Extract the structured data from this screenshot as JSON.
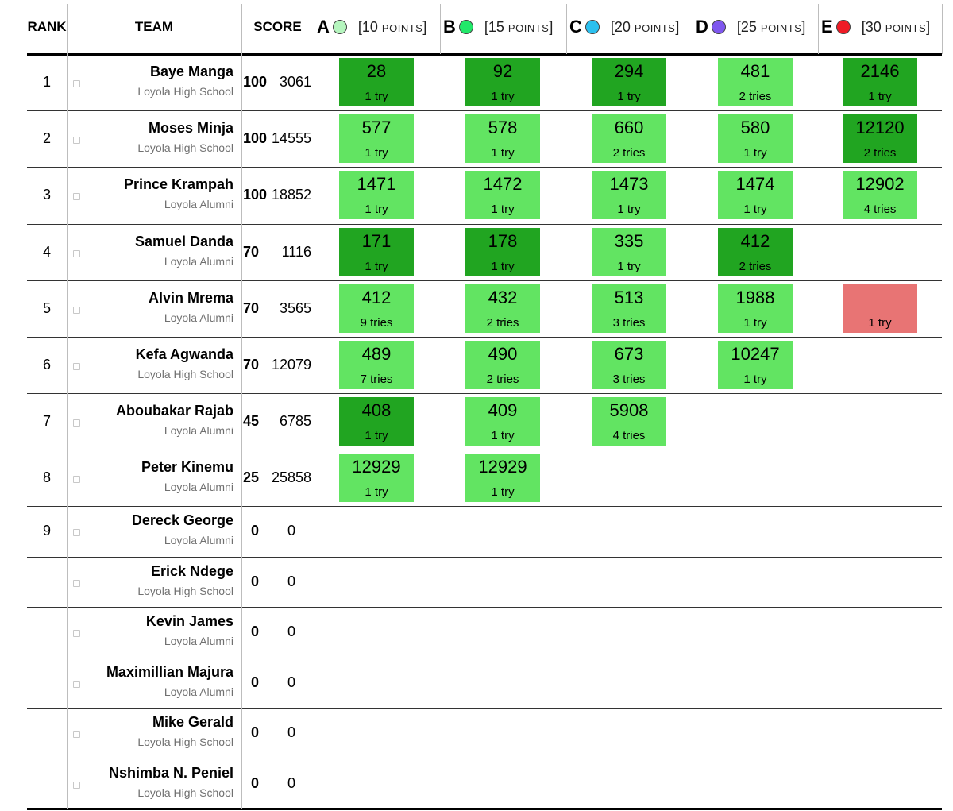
{
  "header": {
    "rank": "RANK",
    "team": "TEAM",
    "score": "SCORE"
  },
  "problems": [
    {
      "letter": "A",
      "points_open": "[10 ",
      "points_word": "POINTS",
      "points_close": "]",
      "color": "#b5f5be",
      "icon": "balloon-icon"
    },
    {
      "letter": "B",
      "points_open": "[15 ",
      "points_word": "POINTS",
      "points_close": "]",
      "color": "#22e86a",
      "icon": "balloon-icon"
    },
    {
      "letter": "C",
      "points_open": "[20 ",
      "points_word": "POINTS",
      "points_close": "]",
      "color": "#2cc0ef",
      "icon": "balloon-icon"
    },
    {
      "letter": "D",
      "points_open": "[25 ",
      "points_word": "POINTS",
      "points_close": "]",
      "color": "#7f57ee",
      "icon": "balloon-icon"
    },
    {
      "letter": "E",
      "points_open": "[30 ",
      "points_word": "POINTS",
      "points_close": "]",
      "color": "#ee1b26",
      "icon": "balloon-icon"
    }
  ],
  "colors": {
    "solved": "#62e462",
    "first_to_solve": "#21a521",
    "failed": "#e87474"
  },
  "rows": [
    {
      "rank": "1",
      "name": "Baye Manga",
      "affiliation": "Loyola High School",
      "points": "100",
      "penalty": "3061",
      "cells": [
        {
          "status": "first",
          "time": "28",
          "tries": "1 try"
        },
        {
          "status": "first",
          "time": "92",
          "tries": "1 try"
        },
        {
          "status": "first",
          "time": "294",
          "tries": "1 try"
        },
        {
          "status": "solved",
          "time": "481",
          "tries": "2 tries"
        },
        {
          "status": "first",
          "time": "2146",
          "tries": "1 try"
        }
      ]
    },
    {
      "rank": "2",
      "name": "Moses Minja",
      "affiliation": "Loyola High School",
      "points": "100",
      "penalty": "14555",
      "cells": [
        {
          "status": "solved",
          "time": "577",
          "tries": "1 try"
        },
        {
          "status": "solved",
          "time": "578",
          "tries": "1 try"
        },
        {
          "status": "solved",
          "time": "660",
          "tries": "2 tries"
        },
        {
          "status": "solved",
          "time": "580",
          "tries": "1 try"
        },
        {
          "status": "first",
          "time": "12120",
          "tries": "2 tries"
        }
      ]
    },
    {
      "rank": "3",
      "name": "Prince Krampah",
      "affiliation": "Loyola Alumni",
      "points": "100",
      "penalty": "18852",
      "cells": [
        {
          "status": "solved",
          "time": "1471",
          "tries": "1 try"
        },
        {
          "status": "solved",
          "time": "1472",
          "tries": "1 try"
        },
        {
          "status": "solved",
          "time": "1473",
          "tries": "1 try"
        },
        {
          "status": "solved",
          "time": "1474",
          "tries": "1 try"
        },
        {
          "status": "solved",
          "time": "12902",
          "tries": "4 tries"
        }
      ]
    },
    {
      "rank": "4",
      "name": "Samuel Danda",
      "affiliation": "Loyola Alumni",
      "points": "70",
      "penalty": "1116",
      "cells": [
        {
          "status": "first",
          "time": "171",
          "tries": "1 try"
        },
        {
          "status": "first",
          "time": "178",
          "tries": "1 try"
        },
        {
          "status": "solved",
          "time": "335",
          "tries": "1 try"
        },
        {
          "status": "first",
          "time": "412",
          "tries": "2 tries"
        },
        {
          "status": "none"
        }
      ]
    },
    {
      "rank": "5",
      "name": "Alvin Mrema",
      "affiliation": "Loyola Alumni",
      "points": "70",
      "penalty": "3565",
      "cells": [
        {
          "status": "solved",
          "time": "412",
          "tries": "9 tries"
        },
        {
          "status": "solved",
          "time": "432",
          "tries": "2 tries"
        },
        {
          "status": "solved",
          "time": "513",
          "tries": "3 tries"
        },
        {
          "status": "solved",
          "time": "1988",
          "tries": "1 try"
        },
        {
          "status": "failed",
          "time": "",
          "tries": "1 try"
        }
      ]
    },
    {
      "rank": "6",
      "name": "Kefa Agwanda",
      "affiliation": "Loyola High School",
      "points": "70",
      "penalty": "12079",
      "cells": [
        {
          "status": "solved",
          "time": "489",
          "tries": "7 tries"
        },
        {
          "status": "solved",
          "time": "490",
          "tries": "2 tries"
        },
        {
          "status": "solved",
          "time": "673",
          "tries": "3 tries"
        },
        {
          "status": "solved",
          "time": "10247",
          "tries": "1 try"
        },
        {
          "status": "none"
        }
      ]
    },
    {
      "rank": "7",
      "name": "Aboubakar Rajab",
      "affiliation": "Loyola Alumni",
      "points": "45",
      "penalty": "6785",
      "cells": [
        {
          "status": "first",
          "time": "408",
          "tries": "1 try"
        },
        {
          "status": "solved",
          "time": "409",
          "tries": "1 try"
        },
        {
          "status": "solved",
          "time": "5908",
          "tries": "4 tries"
        },
        {
          "status": "none"
        },
        {
          "status": "none"
        }
      ]
    },
    {
      "rank": "8",
      "name": "Peter Kinemu",
      "affiliation": "Loyola Alumni",
      "points": "25",
      "penalty": "25858",
      "cells": [
        {
          "status": "solved",
          "time": "12929",
          "tries": "1 try"
        },
        {
          "status": "solved",
          "time": "12929",
          "tries": "1 try"
        },
        {
          "status": "none"
        },
        {
          "status": "none"
        },
        {
          "status": "none"
        }
      ]
    },
    {
      "rank": "9",
      "name": "Dereck George",
      "affiliation": "Loyola Alumni",
      "points": "0",
      "penalty": "0",
      "cells": []
    },
    {
      "rank": "",
      "name": "Erick Ndege",
      "affiliation": "Loyola High School",
      "points": "0",
      "penalty": "0",
      "cells": []
    },
    {
      "rank": "",
      "name": "Kevin James",
      "affiliation": "Loyola Alumni",
      "points": "0",
      "penalty": "0",
      "cells": []
    },
    {
      "rank": "",
      "name": "Maximillian Majura",
      "affiliation": "Loyola Alumni",
      "points": "0",
      "penalty": "0",
      "cells": []
    },
    {
      "rank": "",
      "name": "Mike Gerald",
      "affiliation": "Loyola High School",
      "points": "0",
      "penalty": "0",
      "cells": []
    },
    {
      "rank": "",
      "name": "Nshimba N. Peniel",
      "affiliation": "Loyola High School",
      "points": "0",
      "penalty": "0",
      "cells": []
    }
  ]
}
